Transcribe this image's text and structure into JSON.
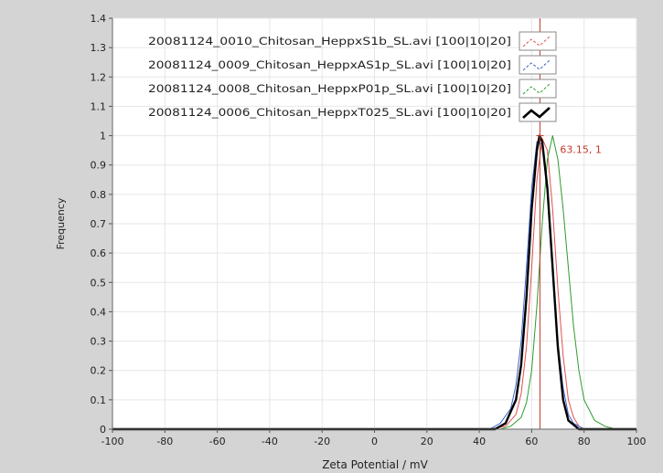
{
  "chart_data": {
    "type": "line",
    "title": "",
    "xlabel": "Zeta Potential / mV",
    "ylabel": "Frequency",
    "xlim": [
      -100,
      100
    ],
    "ylim": [
      0,
      1.4
    ],
    "x_ticks": [
      "-100",
      "-80",
      "-60",
      "-40",
      "-20",
      "0",
      "20",
      "40",
      "60",
      "80",
      "100"
    ],
    "y_ticks": [
      "0",
      "0.1",
      "0.2",
      "0.3",
      "0.4",
      "0.5",
      "0.6",
      "0.7",
      "0.8",
      "0.9",
      "1",
      "1.1",
      "1.2",
      "1.3",
      "1.4"
    ],
    "grid": true,
    "legend_position": "top-right",
    "cursor": {
      "x": 63.15,
      "y": 1,
      "label": "63.15, 1",
      "color": "#c0392b"
    },
    "series": [
      {
        "name": "20081124_0010_Chitosan_HeppxS1b_SL.avi [100|10|20]",
        "color": "#e05050",
        "x": [
          -100,
          44,
          50,
          54,
          56,
          58,
          60,
          62,
          64,
          66,
          68,
          70,
          72,
          74,
          76,
          78,
          80,
          100
        ],
        "y": [
          0,
          0,
          0.01,
          0.05,
          0.12,
          0.28,
          0.55,
          0.85,
          0.99,
          0.95,
          0.75,
          0.48,
          0.25,
          0.1,
          0.04,
          0.01,
          0,
          0
        ]
      },
      {
        "name": "20081124_0009_Chitosan_HeppxAS1p_SL.avi [100|10|20]",
        "color": "#3a5fcd",
        "x": [
          -100,
          44,
          48,
          52,
          54,
          56,
          58,
          60,
          62,
          64,
          66,
          68,
          70,
          72,
          74,
          76,
          80,
          100
        ],
        "y": [
          0,
          0,
          0.02,
          0.07,
          0.15,
          0.3,
          0.55,
          0.82,
          0.98,
          0.97,
          0.8,
          0.55,
          0.3,
          0.14,
          0.05,
          0.02,
          0,
          0
        ]
      },
      {
        "name": "20081124_0008_Chitosan_HeppxP01p_SL.avi [100|10|20]",
        "color": "#2e9b2e",
        "x": [
          -100,
          48,
          52,
          56,
          58,
          60,
          62,
          64,
          66,
          68,
          70,
          72,
          74,
          76,
          78,
          80,
          84,
          88,
          92,
          100
        ],
        "y": [
          0,
          0,
          0.01,
          0.04,
          0.09,
          0.2,
          0.42,
          0.7,
          0.92,
          1.0,
          0.92,
          0.75,
          0.55,
          0.35,
          0.2,
          0.1,
          0.03,
          0.01,
          0,
          0
        ]
      },
      {
        "name": "20081124_0006_Chitosan_HeppxT025_SL.avi [100|10|20]",
        "color": "#000000",
        "x": [
          -100,
          46,
          50,
          54,
          56,
          58,
          60,
          62,
          63,
          64,
          66,
          68,
          70,
          72,
          74,
          78,
          100
        ],
        "y": [
          0,
          0,
          0.02,
          0.1,
          0.22,
          0.45,
          0.75,
          0.95,
          1.0,
          0.98,
          0.82,
          0.55,
          0.28,
          0.1,
          0.03,
          0,
          0
        ]
      }
    ]
  }
}
